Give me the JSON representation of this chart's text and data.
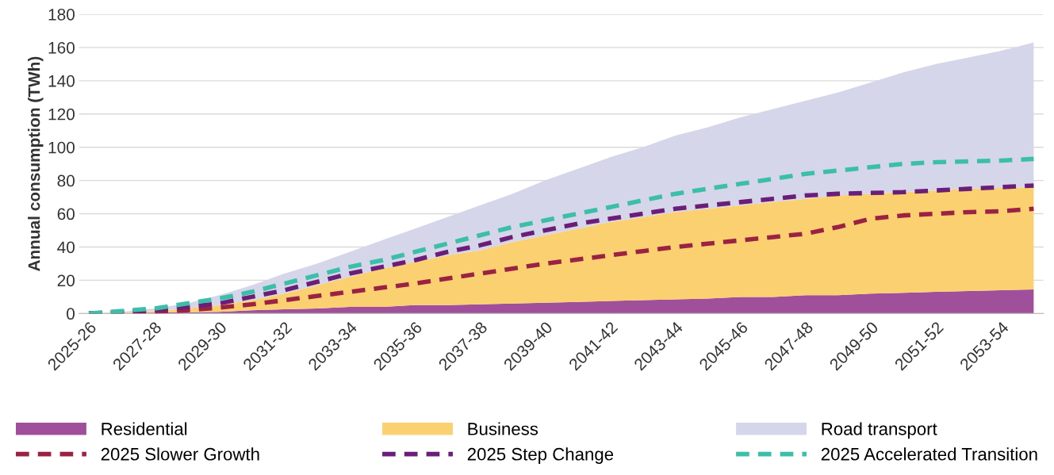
{
  "chart_data": {
    "type": "area",
    "ylabel": "Annual consumption (TWh)",
    "stacked": true,
    "grid": "y",
    "legend": "bottom",
    "line_style": "dashed",
    "marker": "none",
    "categories": [
      "2025-26",
      null,
      "2027-28",
      null,
      "2029-30",
      null,
      "2031-32",
      null,
      "2033-34",
      null,
      "2035-36",
      null,
      "2037-38",
      null,
      "2039-40",
      null,
      "2041-42",
      null,
      "2043-44",
      null,
      "2045-46",
      null,
      "2047-48",
      null,
      "2049-50",
      null,
      "2051-52",
      null,
      "2053-54",
      null
    ],
    "ylim": [
      0,
      180
    ],
    "yticks": [
      0,
      20,
      40,
      60,
      80,
      100,
      120,
      140,
      160,
      180
    ],
    "series": [
      {
        "name": "Residential",
        "color": "#a0509a",
        "values": [
          0,
          0.2,
          0.5,
          0.8,
          1,
          2,
          2.5,
          3,
          4,
          4,
          5,
          5,
          5.5,
          6,
          6.5,
          7,
          7.5,
          8,
          8.5,
          9,
          10,
          10,
          11,
          11,
          12,
          12.5,
          13,
          13.5,
          14,
          14.5
        ]
      },
      {
        "name": "Business",
        "color": "#fbd070",
        "values": [
          0,
          0.3,
          1,
          2.2,
          4,
          6,
          9.5,
          14,
          18,
          23,
          26,
          30,
          32.5,
          37,
          40.5,
          44,
          47.5,
          50,
          52.5,
          54,
          55,
          57,
          58,
          60,
          60,
          60.5,
          61,
          61.5,
          61.5,
          61.5
        ]
      },
      {
        "name": "Road transport",
        "color": "#d5d6ea",
        "values": [
          0,
          0.5,
          1.5,
          3,
          6,
          9,
          12,
          13,
          15,
          17,
          20,
          23,
          27,
          29,
          33,
          36,
          39,
          42,
          46,
          49,
          53,
          56,
          59,
          62,
          67,
          72,
          76,
          79,
          82.5,
          87
        ]
      },
      {
        "name": "2025 Slower Growth",
        "type": "line",
        "color": "#9b2242",
        "values": [
          0,
          0.5,
          1,
          2,
          3.5,
          5.5,
          8,
          10.5,
          13,
          15.5,
          18,
          21,
          24,
          27,
          30,
          32.5,
          35,
          37.5,
          40,
          42,
          44,
          46,
          48,
          52,
          57,
          59,
          60,
          61,
          61.5,
          63
        ]
      },
      {
        "name": "2025 Step Change",
        "type": "line",
        "color": "#6a1e78",
        "values": [
          0,
          1,
          2,
          4,
          6,
          10,
          14,
          19,
          24,
          28,
          32,
          37,
          41,
          46,
          50,
          54,
          57,
          60,
          63,
          65,
          67,
          69,
          71,
          72,
          72.5,
          73,
          74,
          75,
          76,
          77
        ]
      },
      {
        "name": "2025 Accelerated Transition",
        "type": "line",
        "color": "#3cbfa8",
        "values": [
          0,
          1.5,
          3,
          6,
          9,
          13,
          18,
          23,
          28,
          32,
          37,
          42,
          47,
          52,
          56,
          60,
          64,
          68,
          72,
          75,
          78,
          81,
          84,
          86,
          88,
          90,
          91,
          91.5,
          92,
          93
        ]
      }
    ]
  }
}
